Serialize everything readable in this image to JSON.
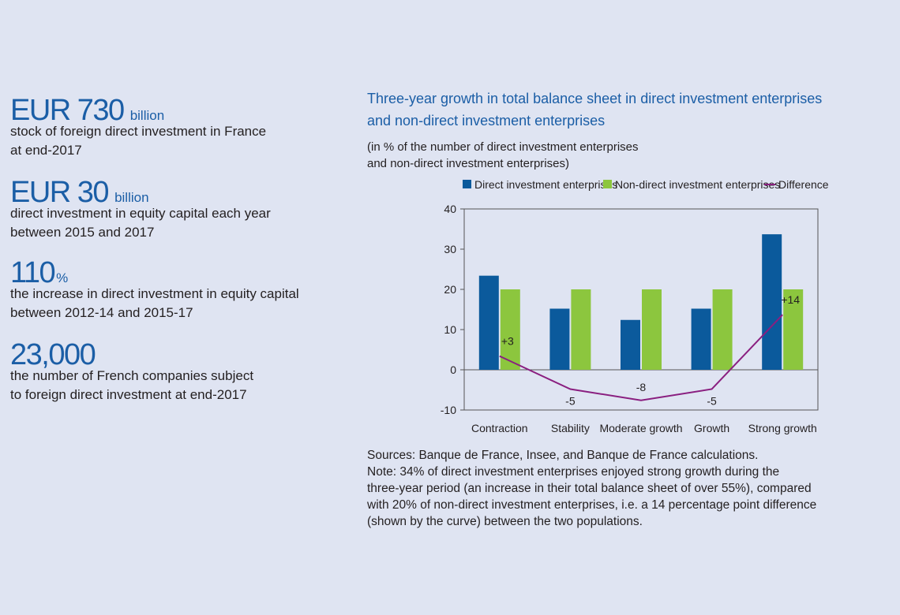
{
  "key_figures": [
    {
      "figure": "EUR 730",
      "unit": "billion",
      "description": [
        "stock of foreign direct investment in France",
        "at end-2017"
      ]
    },
    {
      "figure": "EUR 30",
      "unit": "billion",
      "description": [
        "direct investment in equity capital each year",
        "between 2015 and 2017"
      ]
    },
    {
      "figure": "110",
      "unit": "%",
      "description": [
        "the increase in direct investment in equity capital",
        "between 2012-14 and 2015-17"
      ]
    },
    {
      "figure": "23,000",
      "description": [
        "the number of French companies subject",
        " to foreign direct investment at end-2017"
      ]
    }
  ],
  "chart_data": {
    "type": "bar",
    "title": [
      "Three-year growth in total balance sheet in direct investment enterprises",
      "and non-direct investment enterprises"
    ],
    "subtitle": [
      "(in % of the number of direct investment enterprises",
      "and non-direct investment enterprises)"
    ],
    "categories": [
      "Contraction",
      "Stability",
      "Moderate growth",
      "Growth",
      "Strong growth"
    ],
    "series": [
      {
        "name": "Direct investment enterprises",
        "color": "#0b5a9c",
        "values": [
          23.4,
          15.2,
          12.4,
          15.2,
          33.7
        ]
      },
      {
        "name": "Non-direct investment enterprises",
        "color": "#8cc63e",
        "values": [
          20,
          20,
          20,
          20,
          20
        ]
      },
      {
        "name": "Difference",
        "type": "line",
        "color": "#8a1f80",
        "values": [
          3.4,
          -4.8,
          -7.6,
          -4.8,
          13.7
        ],
        "value_labels": [
          "+3",
          "-5",
          "-8",
          "-5",
          "+14"
        ]
      }
    ],
    "ylim": [
      -10,
      40
    ],
    "yticks": [
      -10,
      0,
      10,
      20,
      30,
      40
    ],
    "notes": [
      "Sources: Banque de France, Insee, and Banque de France calculations.",
      "Note: 34% of direct investment enterprises enjoyed strong growth during the",
      "three-year period (an increase in their total balance sheet of over 55%), compared",
      "with 20% of non-direct investment enterprises, i.e. a 14 percentage point difference",
      "(shown by the curve) between the two populations."
    ]
  }
}
